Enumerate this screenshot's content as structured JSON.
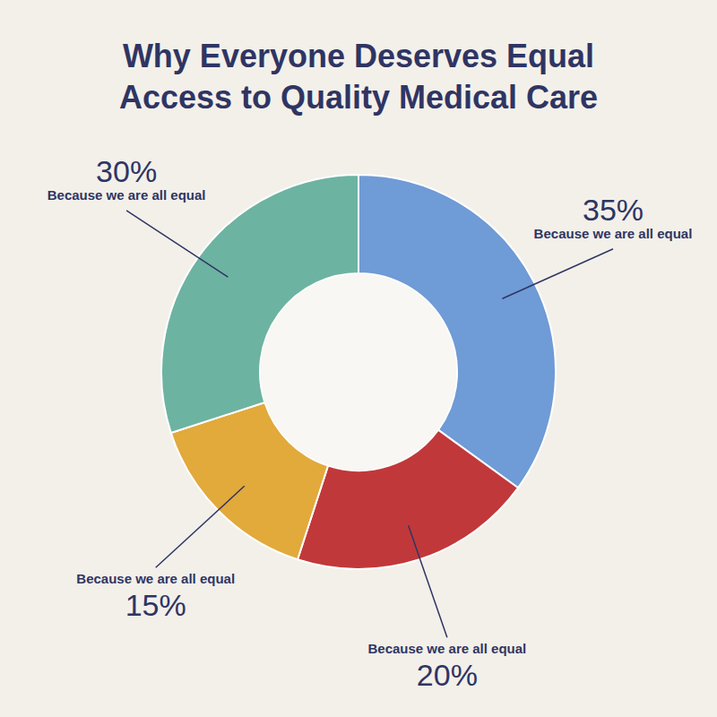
{
  "chart_data": {
    "type": "pie",
    "title": "Why Everyone Deserves Equal Access to Quality Medical Care",
    "categories": [
      "Because we are all equal",
      "Because we are all equal",
      "Because we are all equal",
      "Because we are all equal"
    ],
    "values": [
      35,
      20,
      15,
      30
    ],
    "value_labels": [
      "35%",
      "20%",
      "15%",
      "30%"
    ],
    "colors": [
      "#6f9bd6",
      "#c1383a",
      "#e2a93b",
      "#6db3a2"
    ],
    "data_labels": true
  }
}
